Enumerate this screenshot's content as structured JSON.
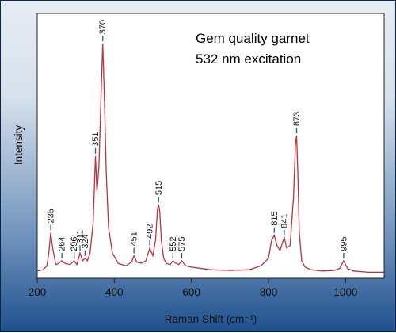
{
  "chart_data": {
    "type": "line",
    "title": "",
    "annotation_lines": [
      "Gem quality garnet",
      "532 nm excitation"
    ],
    "xlabel": "Raman Shift (cm⁻¹)",
    "ylabel": "Intensity",
    "xlim": [
      200,
      1100
    ],
    "ylim": [
      0,
      100
    ],
    "x_ticks": [
      200,
      400,
      600,
      800,
      1000
    ],
    "y_ticks_shown": false,
    "grid": false,
    "line_color": "#c0303a",
    "marker_color": "#1e5fa0",
    "series": [
      {
        "x": [
          200,
          215,
          225,
          230,
          235,
          240,
          248,
          256,
          264,
          272,
          285,
          296,
          303,
          311,
          318,
          324,
          330,
          337,
          345,
          351,
          355,
          360,
          366,
          370,
          374,
          379,
          385,
          395,
          410,
          430,
          445,
          451,
          458,
          470,
          482,
          492,
          500,
          507,
          512,
          515,
          518,
          522,
          528,
          535,
          545,
          552,
          560,
          567,
          575,
          585,
          600,
          650,
          700,
          750,
          780,
          800,
          808,
          815,
          822,
          830,
          836,
          841,
          847,
          856,
          865,
          870,
          873,
          876,
          880,
          886,
          895,
          910,
          940,
          970,
          985,
          995,
          1005,
          1020,
          1060,
          1100
        ],
        "y": [
          1,
          1.5,
          3,
          8,
          16,
          10,
          3.5,
          4,
          5,
          4,
          3.5,
          5,
          3.5,
          8,
          5,
          6,
          5,
          8,
          20,
          46,
          32,
          42,
          72,
          90,
          70,
          40,
          18,
          8,
          4,
          3,
          4.5,
          7,
          4.5,
          4,
          5,
          10,
          7,
          13,
          25,
          27,
          24,
          13,
          6,
          4,
          3.5,
          5,
          4,
          3.5,
          5,
          3,
          2.5,
          1.5,
          1.2,
          1.5,
          3,
          6,
          13,
          15,
          11,
          9,
          12,
          14,
          10,
          11,
          30,
          51,
          54,
          40,
          16,
          5,
          2.5,
          1.5,
          1,
          1.2,
          2,
          5,
          2,
          1,
          0.5,
          0.5
        ]
      }
    ],
    "peak_labels": [
      {
        "x": 235,
        "y": 16,
        "label": "235"
      },
      {
        "x": 264,
        "y": 5,
        "label": "264"
      },
      {
        "x": 296,
        "y": 5,
        "label": "296"
      },
      {
        "x": 311,
        "y": 8,
        "label": "311"
      },
      {
        "x": 324,
        "y": 6,
        "label": "324"
      },
      {
        "x": 351,
        "y": 46,
        "label": "351"
      },
      {
        "x": 370,
        "y": 90,
        "label": "370"
      },
      {
        "x": 451,
        "y": 7,
        "label": "451"
      },
      {
        "x": 492,
        "y": 10,
        "label": "492"
      },
      {
        "x": 515,
        "y": 27,
        "label": "515"
      },
      {
        "x": 552,
        "y": 5,
        "label": "552"
      },
      {
        "x": 575,
        "y": 5,
        "label": "575"
      },
      {
        "x": 815,
        "y": 15,
        "label": "815"
      },
      {
        "x": 841,
        "y": 14,
        "label": "841"
      },
      {
        "x": 873,
        "y": 54,
        "label": "873"
      },
      {
        "x": 995,
        "y": 5,
        "label": "995"
      }
    ]
  }
}
